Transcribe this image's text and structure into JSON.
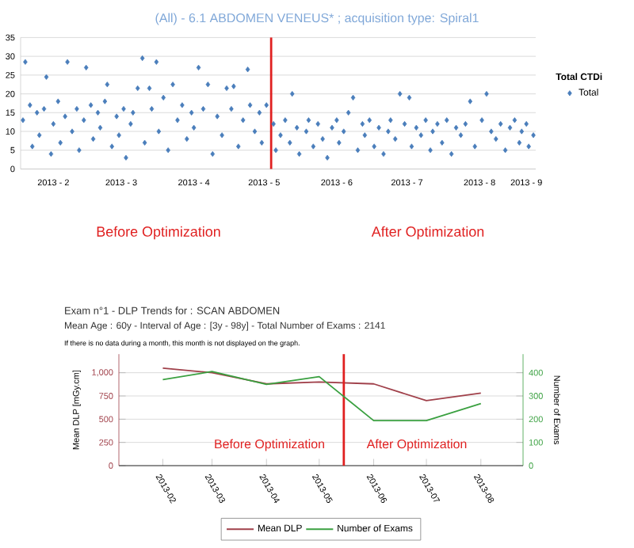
{
  "chart_data": [
    {
      "type": "scatter",
      "title": "(All) - 6.1 ABDOMEN VENEUS* ; acquisition type: Spiral1",
      "legend_title": "Total CTDi",
      "series": [
        {
          "name": "Total",
          "color": "#4a7ebb",
          "x": [
            "2013-02-02",
            "2013-02-03",
            "2013-02-05",
            "2013-02-06",
            "2013-02-08",
            "2013-02-09",
            "2013-02-11",
            "2013-02-12",
            "2013-02-14",
            "2013-02-15",
            "2013-02-17",
            "2013-02-18",
            "2013-02-20",
            "2013-02-21",
            "2013-02-23",
            "2013-02-25",
            "2013-02-26",
            "2013-02-28",
            "2013-03-01",
            "2013-03-03",
            "2013-03-04",
            "2013-03-06",
            "2013-03-07",
            "2013-03-09",
            "2013-03-10",
            "2013-03-12",
            "2013-03-14",
            "2013-03-15",
            "2013-03-17",
            "2013-03-18",
            "2013-03-20",
            "2013-03-21",
            "2013-03-23",
            "2013-03-25",
            "2013-03-26",
            "2013-03-28",
            "2013-03-29",
            "2013-03-31",
            "2013-04-01",
            "2013-04-03",
            "2013-04-05",
            "2013-04-07",
            "2013-04-09",
            "2013-04-11",
            "2013-04-13",
            "2013-04-15",
            "2013-04-16",
            "2013-04-18",
            "2013-04-20",
            "2013-04-22",
            "2013-04-24",
            "2013-04-26",
            "2013-04-28",
            "2013-04-30",
            "2013-05-02",
            "2013-05-03",
            "2013-05-05",
            "2013-05-07",
            "2013-05-09",
            "2013-05-10",
            "2013-05-12",
            "2013-05-14",
            "2013-05-15",
            "2013-05-17",
            "2013-05-20",
            "2013-05-21",
            "2013-05-23",
            "2013-05-25",
            "2013-05-27",
            "2013-05-28",
            "2013-05-30",
            "2013-05-31",
            "2013-06-03",
            "2013-06-04",
            "2013-06-06",
            "2013-06-08",
            "2013-06-10",
            "2013-06-12",
            "2013-06-14",
            "2013-06-16",
            "2013-06-17",
            "2013-06-19",
            "2013-06-21",
            "2013-06-23",
            "2013-06-25",
            "2013-06-27",
            "2013-06-28",
            "2013-06-30",
            "2013-07-02",
            "2013-07-04",
            "2013-07-06",
            "2013-07-08",
            "2013-07-09",
            "2013-07-11",
            "2013-07-13",
            "2013-07-15",
            "2013-07-17",
            "2013-07-18",
            "2013-07-20",
            "2013-07-22",
            "2013-07-24",
            "2013-07-26",
            "2013-07-27",
            "2013-07-29",
            "2013-07-31",
            "2013-08-02",
            "2013-08-04",
            "2013-08-06",
            "2013-08-08",
            "2013-08-10",
            "2013-08-12",
            "2013-08-14",
            "2013-08-17",
            "2013-08-19",
            "2013-08-21",
            "2013-08-23",
            "2013-08-25",
            "2013-08-27",
            "2013-08-29",
            "2013-08-31",
            "2013-09-02",
            "2013-09-03",
            "2013-09-05",
            "2013-09-06",
            "2013-09-08"
          ],
          "values": [
            13,
            28.5,
            17,
            6,
            15,
            9,
            16,
            24.5,
            4,
            12,
            18,
            7,
            14,
            28.5,
            10,
            16,
            5,
            13,
            27,
            17,
            8,
            15,
            11,
            18,
            22.5,
            6,
            14,
            9,
            16,
            3,
            12,
            15,
            21.5,
            29.5,
            7,
            21.5,
            16,
            28.5,
            10,
            19,
            5,
            22.5,
            13,
            17,
            8,
            15,
            11,
            27,
            16,
            22.5,
            4,
            14,
            9,
            21.5,
            16,
            22,
            6,
            13,
            26.5,
            17,
            10,
            15,
            7,
            17,
            12,
            5,
            9,
            13,
            7,
            20,
            11,
            4,
            10,
            13,
            6,
            12,
            8,
            3,
            11,
            13,
            7,
            10,
            15,
            19,
            5,
            12,
            9,
            13,
            6,
            11,
            4,
            10,
            13,
            8,
            20,
            12,
            19,
            6,
            11,
            9,
            13,
            5,
            10,
            12,
            7,
            13,
            4,
            11,
            9,
            12,
            18,
            6,
            13,
            20,
            10,
            8,
            12,
            5,
            11,
            13,
            7,
            10,
            12,
            6,
            9
          ]
        }
      ],
      "xlim": [
        "2013-02-01",
        "2013-09-09"
      ],
      "xticks": [
        {
          "value": "2013-02-15",
          "label": "2013 - 2"
        },
        {
          "value": "2013-03-16",
          "label": "2013 - 3"
        },
        {
          "value": "2013-04-16",
          "label": "2013 - 4"
        },
        {
          "value": "2013-05-16",
          "label": "2013 - 5"
        },
        {
          "value": "2013-06-16",
          "label": "2013 - 6"
        },
        {
          "value": "2013-07-16",
          "label": "2013 - 7"
        },
        {
          "value": "2013-08-16",
          "label": "2013 - 8"
        },
        {
          "value": "2013-09-05",
          "label": "2013 - 9"
        }
      ],
      "ylim": [
        0,
        35
      ],
      "yticks": [
        0,
        5,
        10,
        15,
        20,
        25,
        30,
        35
      ],
      "grid": "y",
      "legend": "right",
      "marker": "diamond",
      "ref_lines": [
        {
          "axis": "x",
          "value": "2013-05-19",
          "color": "#e02020"
        }
      ],
      "annotations": [
        "Before Optimization",
        "After Optimization"
      ]
    },
    {
      "type": "line",
      "title": "Exam n°1 - DLP Trends for : SCAN ABDOMEN",
      "subtitle": "Mean Age : 60y - Interval of Age : [3y - 98y] - Total Number of Exams : 2141",
      "x": [
        "2013-02",
        "2013-03",
        "2013-04",
        "2013-05",
        "2013-06",
        "2013-07",
        "2013-08"
      ],
      "xlim": [
        "2013-01-07",
        "2013-08-25"
      ],
      "xticks": [
        "2013-02",
        "2013-03",
        "2013-04",
        "2013-05",
        "2013-06",
        "2013-07",
        "2013-08"
      ],
      "ylabel": "Mean DLP [mGy.cm]",
      "y2label": "Number of Exams",
      "ylim": [
        0,
        1200
      ],
      "yticks": [
        0,
        250,
        500,
        750,
        {
          "value": 1000,
          "label": "1,000"
        }
      ],
      "y2lim": [
        0,
        480
      ],
      "y2ticks": [
        0,
        100,
        200,
        300,
        400
      ],
      "series": [
        {
          "name": "Mean DLP",
          "color": "#a0404a",
          "values": [
            1050,
            1000,
            880,
            900,
            880,
            700,
            780
          ]
        },
        {
          "name": "Number of Exams",
          "color": "#3aa040",
          "axis": "y2",
          "values": [
            370,
            405,
            350,
            383,
            194,
            194,
            267
          ]
        }
      ],
      "legend": "bottom",
      "grid": "y",
      "ref_lines": [
        {
          "axis": "x",
          "value": "2013-05-15",
          "color": "#e02020"
        }
      ],
      "annotations": [
        "If there is no data during a month, this month is not displayed on the graph.",
        "Before Optimization",
        "After Optimization"
      ]
    }
  ]
}
